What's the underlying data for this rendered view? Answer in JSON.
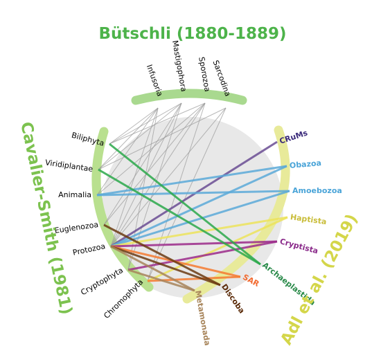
{
  "groups": [
    {
      "title": "Bütschli (1880-1889)",
      "nodes": [
        "Infusoria",
        "Mastigophora",
        "Sporozoa",
        "Sarcodina"
      ]
    },
    {
      "title": "Cavalier-Smith (1981)",
      "nodes": [
        "Biliphyta",
        "Viridiplantae",
        "Animalia",
        "Euglenozoa",
        "Protozoa",
        "Cryptophyta",
        "Chromophyta"
      ]
    },
    {
      "title": "Adl et al. (2019)",
      "nodes": [
        "CRuMs",
        "Obazoa",
        "Amoebozoa",
        "Haptista",
        "Cryptista",
        "Archaeplastida",
        "SAR",
        "Discoba",
        "Metamonada"
      ]
    }
  ]
}
